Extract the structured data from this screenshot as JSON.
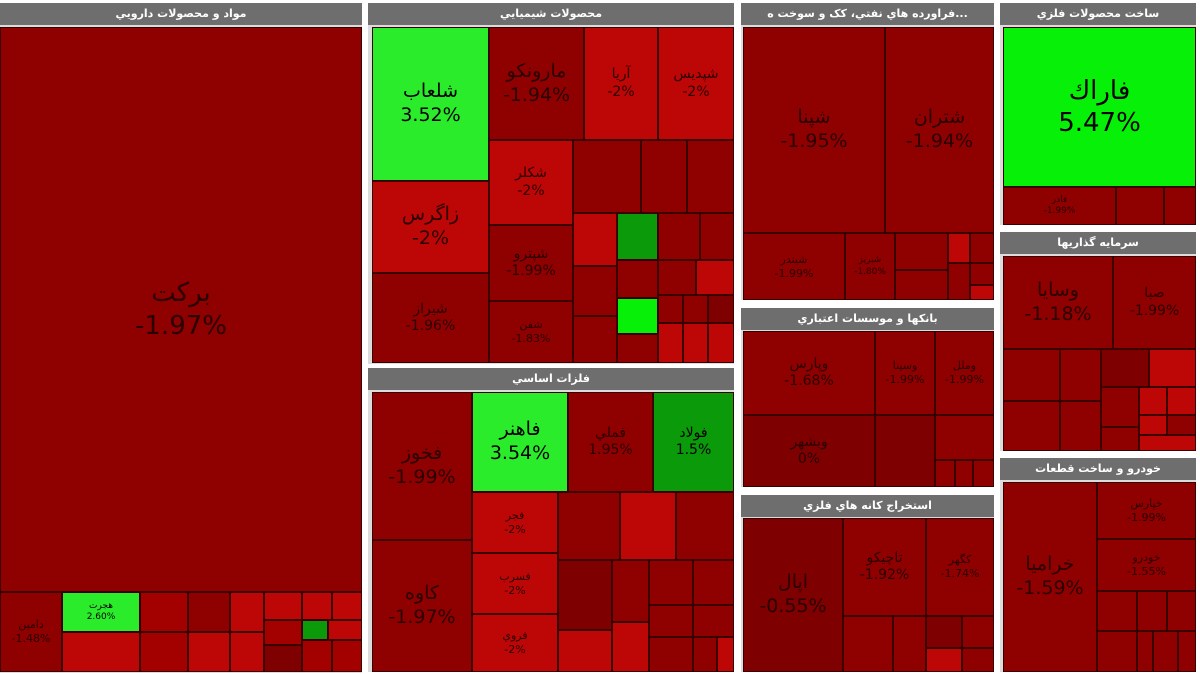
{
  "chart_data": {
    "type": "treemap",
    "title": "",
    "colors": {
      "dark_red": "#7e0000",
      "red": "#8f0000",
      "mid_red": "#a30000",
      "bright_red": "#bd0606",
      "green": "#2bec2b",
      "bright_green": "#07f007",
      "dark_green": "#0a9a0a"
    },
    "sectors": [
      {
        "name": "مواد و محصولات دارويي",
        "tiles": [
          {
            "symbol": "برکت",
            "change": "-1.97%"
          },
          {
            "symbol": "دامین",
            "change": "-1.48%"
          },
          {
            "symbol": "هجرت",
            "change": "2.60%"
          }
        ]
      },
      {
        "name": "محصولات شيميايي",
        "tiles": [
          {
            "symbol": "شلعاب",
            "change": "3.52%"
          },
          {
            "symbol": "زاگرس",
            "change": "-2%"
          },
          {
            "symbol": "شيراز",
            "change": "-1.96%"
          },
          {
            "symbol": "مارونکو",
            "change": "-1.94%"
          },
          {
            "symbol": "آريا",
            "change": "-2%"
          },
          {
            "symbol": "شپديس",
            "change": "-2%"
          },
          {
            "symbol": "شکلر",
            "change": "-2%"
          },
          {
            "symbol": "شپترو",
            "change": "-1.99%"
          },
          {
            "symbol": "شفن",
            "change": "-1.83%"
          }
        ]
      },
      {
        "name": "...فراورده هاي نفتي، کک و سوخت ه",
        "tiles": [
          {
            "symbol": "شپنا",
            "change": "-1.95%"
          },
          {
            "symbol": "شتران",
            "change": "-1.94%"
          },
          {
            "symbol": "شبندر",
            "change": "-1.99%"
          },
          {
            "symbol": "شبريز",
            "change": "-1.80%"
          }
        ]
      },
      {
        "name": "ساخت محصولات فلزي",
        "tiles": [
          {
            "symbol": "فاراك",
            "change": "5.47%"
          },
          {
            "symbol": "فاذر",
            "change": "-1.99%"
          }
        ]
      },
      {
        "name": "سرمايه گذاريها",
        "tiles": [
          {
            "symbol": "وسايا",
            "change": "-1.18%"
          },
          {
            "symbol": "صبا",
            "change": "-1.99%"
          }
        ]
      },
      {
        "name": "بانکها و موسسات اعتباري",
        "tiles": [
          {
            "symbol": "وپارس",
            "change": "-1.68%"
          },
          {
            "symbol": "وسينا",
            "change": "-1.99%"
          },
          {
            "symbol": "وملل",
            "change": "-1.99%"
          },
          {
            "symbol": "وبشهر",
            "change": "0%"
          }
        ]
      },
      {
        "name": "فلزات اساسي",
        "tiles": [
          {
            "symbol": "فخوز",
            "change": "-1.99%"
          },
          {
            "symbol": "کاوه",
            "change": "-1.97%"
          },
          {
            "symbol": "فاهنر",
            "change": "3.54%"
          },
          {
            "symbol": "فملي",
            "change": "1.95%"
          },
          {
            "symbol": "فولاد",
            "change": "1.5%"
          },
          {
            "symbol": "فجر",
            "change": "-2%"
          },
          {
            "symbol": "فسرب",
            "change": "-2%"
          },
          {
            "symbol": "فروي",
            "change": "-2%"
          }
        ]
      },
      {
        "name": "استخراج کانه هاي فلزي",
        "tiles": [
          {
            "symbol": "اپال",
            "change": "-0.55%"
          },
          {
            "symbol": "تاچيکو",
            "change": "-1.92%"
          },
          {
            "symbol": "کگهر",
            "change": "-1.74%"
          }
        ]
      },
      {
        "name": "خودرو و ساخت قطعات",
        "tiles": [
          {
            "symbol": "خراميا",
            "change": "-1.59%"
          },
          {
            "symbol": "خپارس",
            "change": "-1.99%"
          },
          {
            "symbol": "خودرو",
            "change": "-1.55%"
          }
        ]
      }
    ]
  }
}
